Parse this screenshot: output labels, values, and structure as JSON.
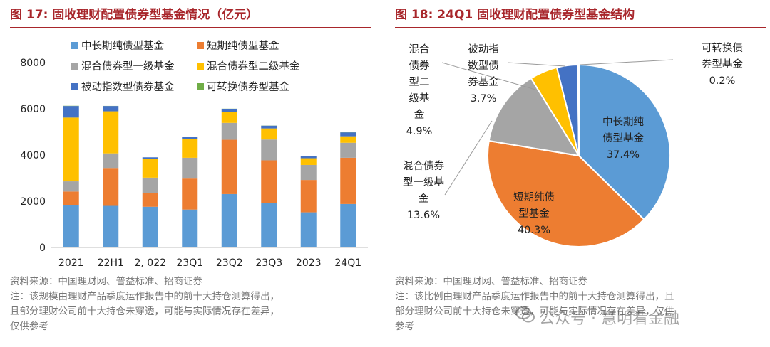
{
  "left": {
    "title": "图 17:  固收理财配置债券型基金情况（亿元）",
    "sources": [
      "资料来源：中国理财网、普益标准、招商证券",
      "注：该规模由理财产品季度运作报告中的前十大持仓测算得出，",
      "且部分理财公司前十大持仓未穿透，可能与实际情况存在差异，",
      "仅供参考"
    ]
  },
  "right": {
    "title": "图 18:  24Q1 固收理财配置债券型基金结构",
    "sources": [
      "资料来源：中国理财网、普益标准、招商证券",
      "注：该比例由理财产品季度运作报告中的前十大持仓测算得出，且",
      "部分理财公司前十大持仓未穿透，可能与实际情况存在差异，仅供",
      "参考"
    ]
  },
  "watermark": "公众号 · 慧明看金融",
  "chart_data": [
    {
      "type": "bar",
      "stacked": true,
      "title": "固收理财配置债券型基金情况（亿元）",
      "categories": [
        "2021",
        "22H1",
        "2, 022",
        "23Q1",
        "23Q2",
        "23Q3",
        "2023",
        "24Q1"
      ],
      "ylim": [
        0,
        8000
      ],
      "yticks": [
        "0",
        "2000",
        "4000",
        "6000",
        "8000"
      ],
      "legend_position": "top",
      "series": [
        {
          "name": "中长期纯债型基金",
          "color": "#5b9bd5",
          "values": [
            1830,
            1800,
            1760,
            1640,
            2310,
            1930,
            1520,
            1880
          ]
        },
        {
          "name": "短期纯债型基金",
          "color": "#ed7d31",
          "values": [
            590,
            1640,
            600,
            1340,
            2350,
            1840,
            1400,
            2000
          ]
        },
        {
          "name": "混合债券型一级基金",
          "color": "#a5a5a5",
          "values": [
            440,
            630,
            660,
            900,
            730,
            900,
            650,
            650
          ]
        },
        {
          "name": "混合债券型二级基金",
          "color": "#ffc000",
          "values": [
            2760,
            1820,
            820,
            800,
            460,
            480,
            290,
            280
          ]
        },
        {
          "name": "被动指数型债券基金",
          "color": "#4472c4",
          "values": [
            500,
            230,
            60,
            100,
            150,
            120,
            80,
            170
          ]
        },
        {
          "name": "可转换债券型基金",
          "color": "#70ad47",
          "values": [
            10,
            5,
            0,
            5,
            5,
            5,
            5,
            10
          ]
        }
      ]
    },
    {
      "type": "pie",
      "title": "24Q1 固收理财配置债券型基金结构",
      "slices": [
        {
          "name": "中长期纯债型基金",
          "value": 37.4,
          "color": "#5b9bd5",
          "label_lines": [
            "中长期纯",
            "债型基金"
          ],
          "pct": "37.4%"
        },
        {
          "name": "短期纯债型基金",
          "value": 40.3,
          "color": "#ed7d31",
          "label_lines": [
            "短期纯债",
            "型基金"
          ],
          "pct": "40.3%"
        },
        {
          "name": "混合债券型一级基金",
          "value": 13.6,
          "color": "#a5a5a5",
          "label_lines": [
            "混合债券",
            "型一级基",
            "金"
          ],
          "pct": "13.6%"
        },
        {
          "name": "混合债券型二级基金",
          "value": 4.9,
          "color": "#ffc000",
          "label_lines": [
            "混合",
            "债券",
            "型二",
            "级基",
            "金"
          ],
          "pct": "4.9%"
        },
        {
          "name": "被动指数型债券基金",
          "value": 3.7,
          "color": "#4472c4",
          "label_lines": [
            "被动指",
            "数型债",
            "券基金"
          ],
          "pct": "3.7%"
        },
        {
          "name": "可转换债券型基金",
          "value": 0.2,
          "color": "#70ad47",
          "label_lines": [
            "可转换债",
            "券型基金"
          ],
          "pct": "0.2%"
        }
      ]
    }
  ]
}
